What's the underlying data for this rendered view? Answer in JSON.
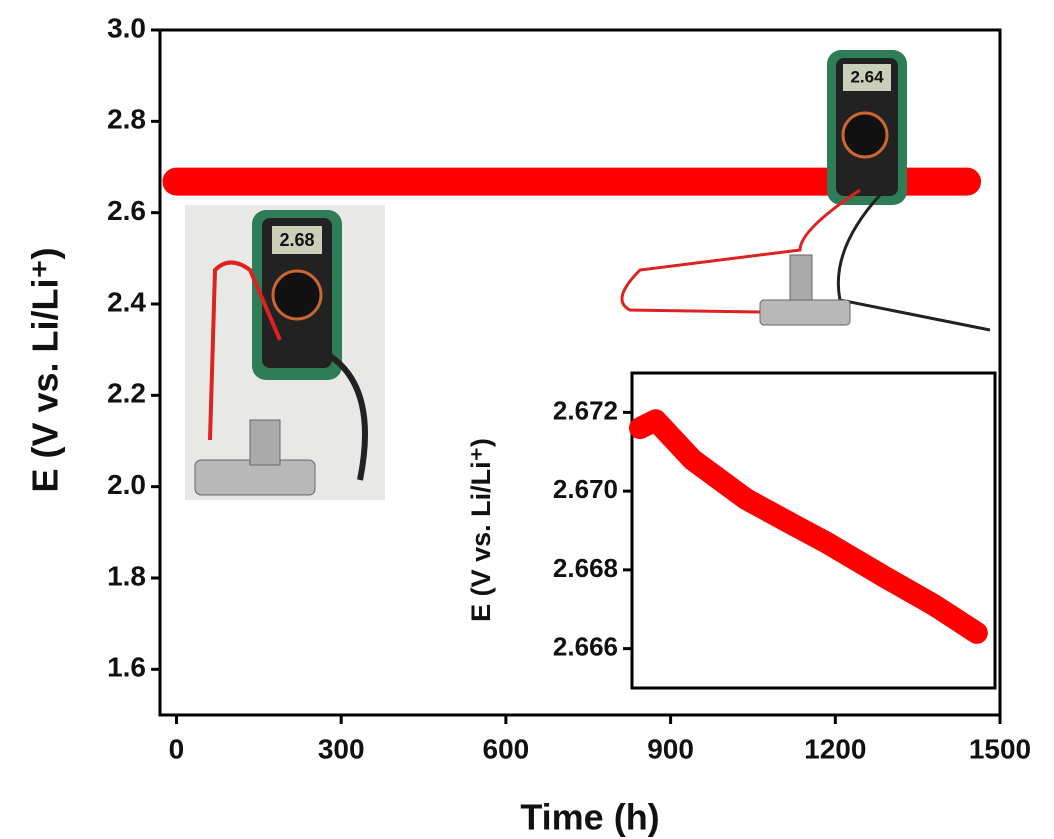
{
  "chart_data": [
    {
      "type": "line",
      "xlabel": "Time (h)",
      "ylabel": "E (V vs. Li/Li⁺)",
      "x": [
        0,
        300,
        600,
        900,
        1200,
        1440
      ],
      "values": [
        2.668,
        2.668,
        2.668,
        2.668,
        2.668,
        2.668
      ],
      "color": "#ff0000",
      "xlim": [
        -30,
        1500
      ],
      "xticks": [
        0,
        300,
        600,
        900,
        1200,
        1500
      ],
      "ylim": [
        1.5,
        3.0
      ],
      "yticks": [
        1.6,
        1.8,
        {
          "value": 2,
          "label": "2.0"
        },
        2.2,
        2.4,
        2.6,
        2.8,
        {
          "value": 3,
          "label": "3.0"
        }
      ],
      "annotations": [
        "2.68",
        "2.64"
      ]
    },
    {
      "type": "line",
      "ylabel": "E (V vs. Li/Li⁺)",
      "x": [
        33,
        98,
        250,
        471,
        650,
        802,
        1050,
        1250,
        1425
      ],
      "values": [
        2.6716,
        2.6718,
        2.6708,
        2.6698,
        2.6692,
        2.6687,
        2.6678,
        2.6671,
        2.6664
      ],
      "color": "#ff0000",
      "xlim": [
        0,
        1500
      ],
      "ylim": [
        2.665,
        2.673
      ],
      "yticks": [
        2.666,
        2.668,
        {
          "value": 2.67,
          "label": "2.670"
        },
        2.672
      ]
    }
  ]
}
